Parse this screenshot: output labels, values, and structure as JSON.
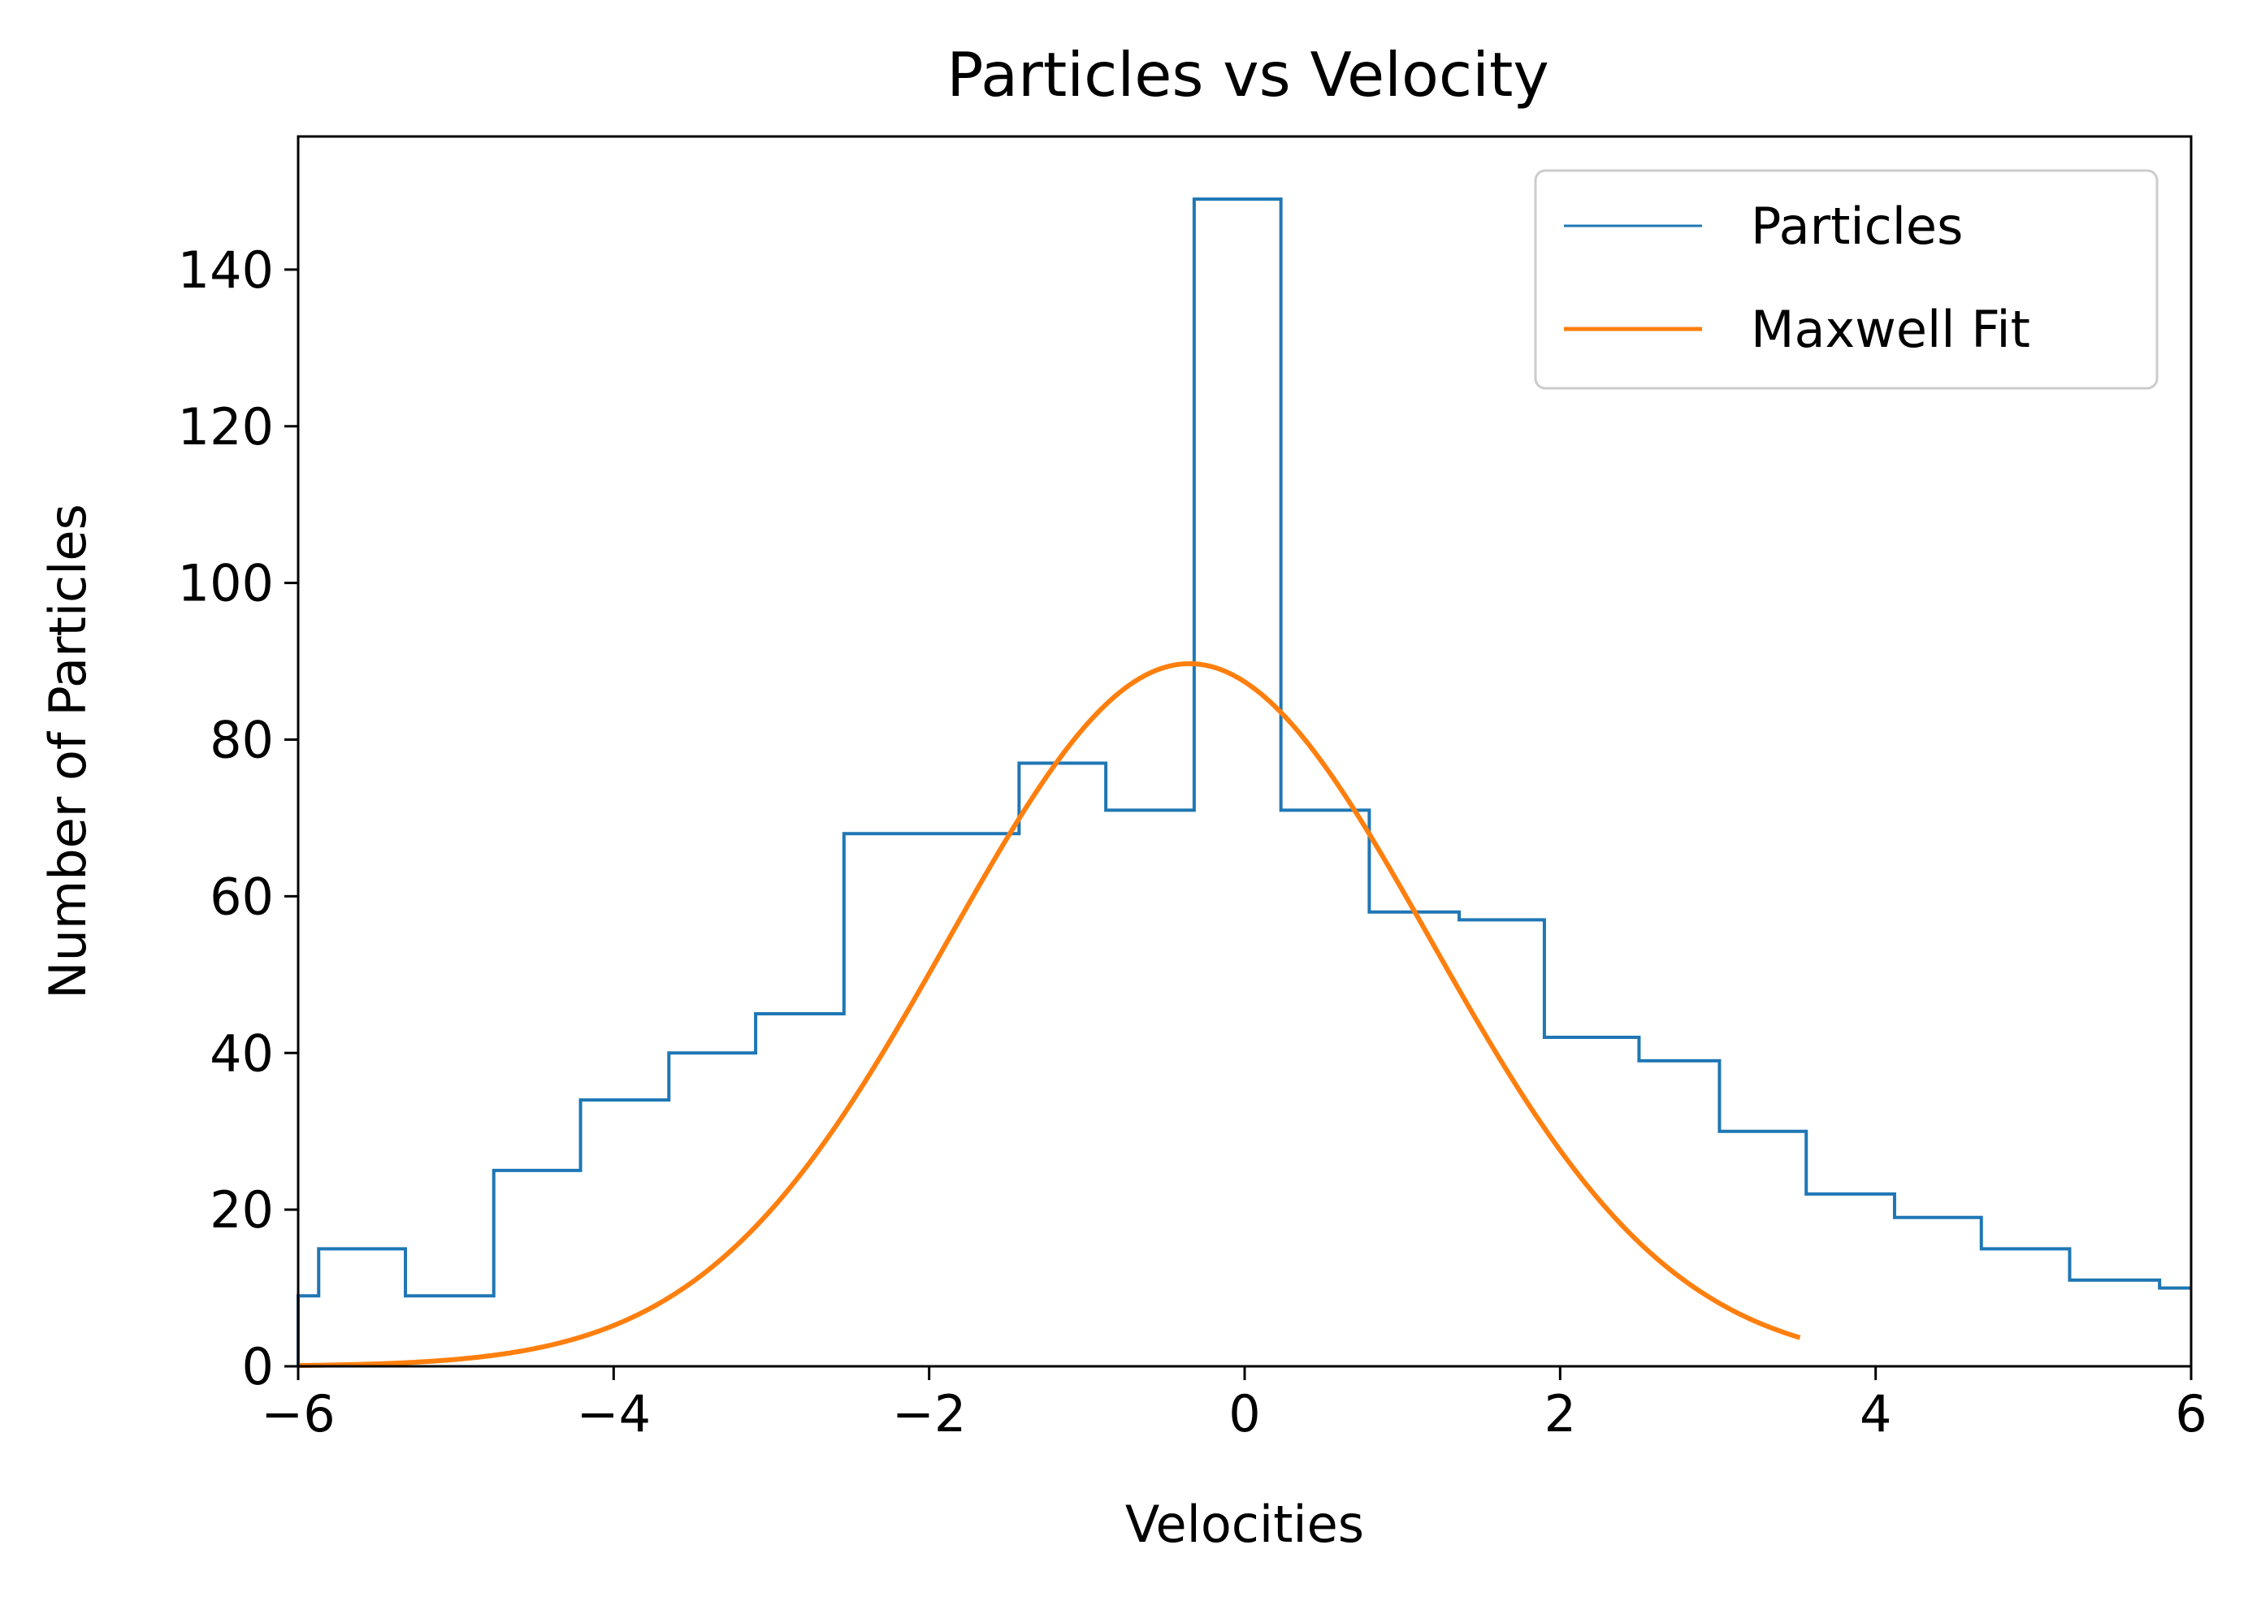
{
  "chart_data": {
    "type": "line",
    "title": "Particles vs Velocity",
    "xlabel": "Velocities",
    "ylabel": "Number of Particles",
    "xlim": [
      -6,
      6
    ],
    "ylim": [
      0,
      157
    ],
    "xticks": [
      -6,
      -4,
      -2,
      0,
      2,
      4,
      6
    ],
    "xtick_labels": [
      "−6",
      "−4",
      "−2",
      "0",
      "2",
      "4",
      "6"
    ],
    "yticks": [
      0,
      20,
      40,
      60,
      80,
      100,
      120,
      140
    ],
    "ytick_labels": [
      "0",
      "20",
      "40",
      "60",
      "80",
      "100",
      "120",
      "140"
    ],
    "grid": false,
    "legend_position": "top-right",
    "series": [
      {
        "name": "Particles",
        "kind": "step-histogram",
        "color": "#1f77b4",
        "bin_edges": [
          -6.0,
          -5.87,
          -5.32,
          -4.76,
          -4.21,
          -3.65,
          -3.1,
          -2.54,
          -1.99,
          -1.43,
          -0.88,
          -0.32,
          0.23,
          0.79,
          1.34,
          1.36,
          1.9,
          2.45,
          2.5,
          3.01,
          3.56,
          4.12,
          4.67,
          5.23,
          5.78,
          5.8,
          6.0
        ],
        "values": [
          9,
          15,
          9,
          25,
          34,
          40,
          45,
          68,
          68,
          77,
          71,
          149,
          71,
          58,
          58,
          57,
          42,
          42,
          39,
          30,
          22,
          19,
          15,
          11,
          11,
          10
        ]
      },
      {
        "name": "Maxwell Fit",
        "kind": "gaussian-curve",
        "color": "#ff7f0e",
        "amplitude": 89.7,
        "mean": -0.35,
        "sigma": 1.53,
        "x_range": [
          -6.0,
          3.52
        ]
      }
    ]
  }
}
